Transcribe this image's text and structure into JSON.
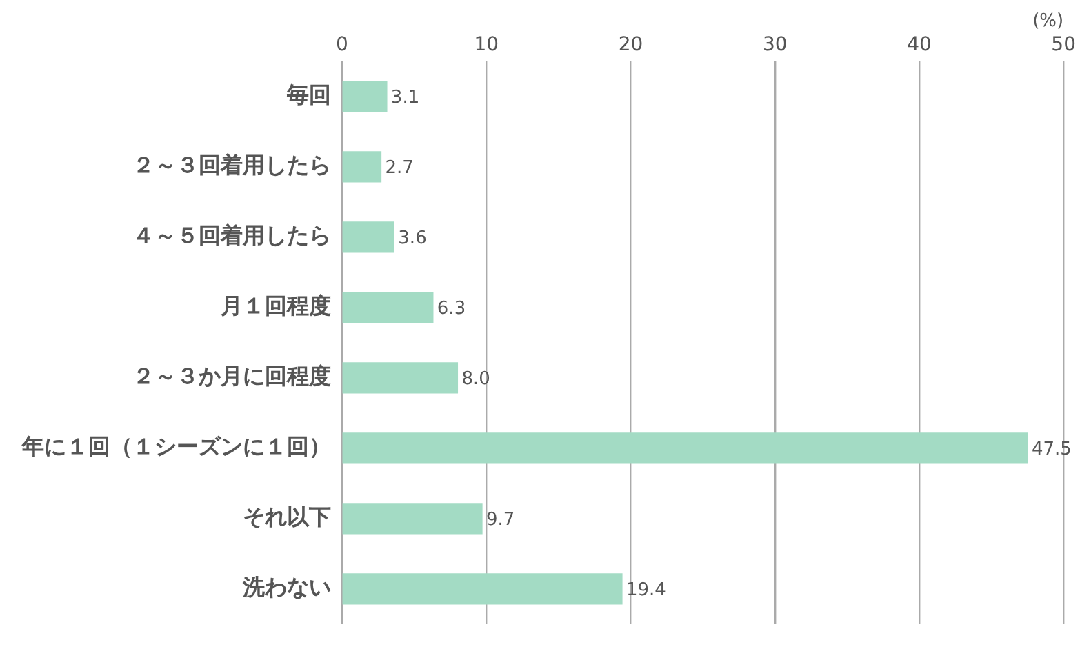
{
  "chart_data": {
    "type": "bar",
    "orientation": "horizontal",
    "xlabel": "(%)",
    "categories": [
      "毎回",
      "２～３回着用したら",
      "４～５回着用したら",
      "月１回程度",
      "２～３か月に回程度",
      "年に１回（１シーズンに１回）",
      "それ以下",
      "洗わない"
    ],
    "values": [
      3.1,
      2.7,
      3.6,
      6.3,
      8.0,
      47.5,
      9.7,
      19.4
    ],
    "value_labels": [
      "3.1",
      "2.7",
      "3.6",
      "6.3",
      "8.0",
      "47.5",
      "9.7",
      "19.4"
    ],
    "color": "#a3dbc4",
    "xlim": [
      0,
      50
    ],
    "xticks": [
      0,
      10,
      20,
      30,
      40,
      50
    ],
    "grid": "x"
  }
}
